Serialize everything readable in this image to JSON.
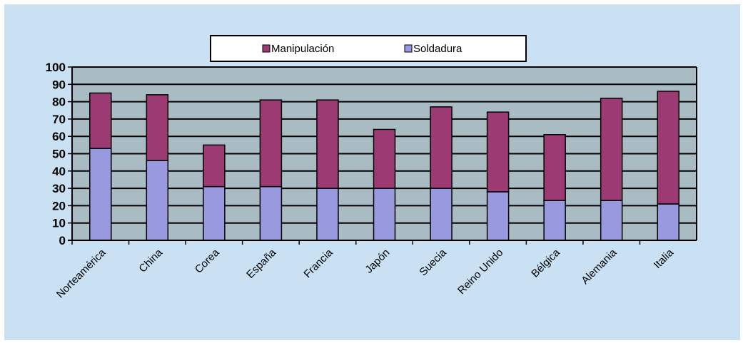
{
  "chart_data": {
    "type": "bar",
    "stacked": true,
    "categories": [
      "Norteamérica",
      "China",
      "Corea",
      "España",
      "Francia",
      "Japón",
      "Suecia",
      "Reino Unido",
      "Bélgica",
      "Alemania",
      "Italia"
    ],
    "series": [
      {
        "name": "Soldadura",
        "color": "#9999e0",
        "values": [
          53,
          46,
          31,
          31,
          30,
          30,
          30,
          28,
          23,
          23,
          21
        ]
      },
      {
        "name": "Manipulación",
        "color": "#9c3b73",
        "values": [
          32,
          38,
          24,
          50,
          51,
          34,
          47,
          46,
          38,
          59,
          65
        ]
      }
    ],
    "legend_order": [
      "Manipulación",
      "Soldadura"
    ],
    "ylim": [
      0,
      100
    ],
    "yticks": [
      0,
      10,
      20,
      30,
      40,
      50,
      60,
      70,
      80,
      90,
      100
    ],
    "grid": true,
    "legend_position": "top",
    "plot_background": "#a9bcc4"
  }
}
